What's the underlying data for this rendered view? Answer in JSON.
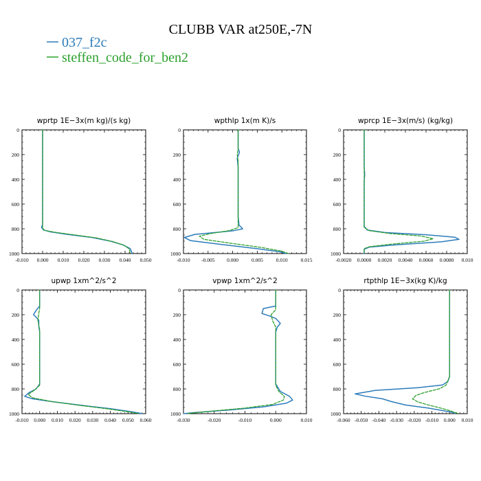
{
  "figure": {
    "title": "CLUBB VAR at250E,-7N",
    "colors": {
      "series_1": "#2b7bba",
      "series_2": "#2ca02c",
      "axis": "#000000"
    }
  },
  "legend": [
    {
      "label": "037_f2c",
      "color": "#2b7bba",
      "style": "solid"
    },
    {
      "label": "steffen_code_for_ben2",
      "color": "#2ca02c",
      "style": "dashed"
    }
  ],
  "chart_data": [
    {
      "type": "line",
      "title": "wprtp  1E−3x(m kg)/(s kg)",
      "xlim": [
        -0.01,
        0.05
      ],
      "ylim": [
        0,
        1000
      ],
      "y_inverted": true,
      "xticks": [
        "-0.010",
        "0.000",
        "0.010",
        "0.020",
        "0.030",
        "0.040",
        "0.050"
      ],
      "yticks": [
        "0",
        "200",
        "400",
        "600",
        "800",
        "1000"
      ],
      "series": [
        {
          "name": "037_f2c",
          "color": "#2b7bba",
          "dash": false,
          "points": [
            [
              0.0,
              0
            ],
            [
              0.0,
              200
            ],
            [
              0.0,
              400
            ],
            [
              0.0,
              600
            ],
            [
              0.0,
              760
            ],
            [
              -0.0005,
              790
            ],
            [
              0.0005,
              810
            ],
            [
              0.004,
              825
            ],
            [
              0.012,
              845
            ],
            [
              0.024,
              870
            ],
            [
              0.033,
              900
            ],
            [
              0.039,
              930
            ],
            [
              0.0425,
              960
            ],
            [
              0.0435,
              1000
            ]
          ]
        },
        {
          "name": "steffen_code_for_ben2",
          "color": "#2ca02c",
          "dash": true,
          "points": [
            [
              0.0,
              0
            ],
            [
              0.0,
              200
            ],
            [
              0.0,
              400
            ],
            [
              0.0,
              600
            ],
            [
              0.0,
              770
            ],
            [
              0.0,
              795
            ],
            [
              0.001,
              812
            ],
            [
              0.006,
              828
            ],
            [
              0.015,
              848
            ],
            [
              0.026,
              873
            ],
            [
              0.034,
              903
            ],
            [
              0.0395,
              933
            ],
            [
              0.042,
              962
            ],
            [
              0.0425,
              1000
            ]
          ]
        }
      ]
    },
    {
      "type": "line",
      "title": "wpthlp  1x(m K)/s",
      "xlim": [
        -0.012,
        0.015
      ],
      "ylim": [
        0,
        1000
      ],
      "y_inverted": true,
      "xticks": [
        "-0.010",
        "-0.005",
        "0.000",
        "0.005",
        "0.010",
        "0.015"
      ],
      "yticks": [
        "0",
        "200",
        "400",
        "600",
        "800",
        "1000"
      ],
      "series": [
        {
          "name": "037_f2c",
          "color": "#2b7bba",
          "dash": false,
          "points": [
            [
              0.0,
              0
            ],
            [
              0.0,
              150
            ],
            [
              0.0003,
              180
            ],
            [
              -0.0002,
              230
            ],
            [
              0.0,
              300
            ],
            [
              0.0,
              500
            ],
            [
              0.0,
              700
            ],
            [
              0.0002,
              770
            ],
            [
              0.001,
              800
            ],
            [
              -0.001,
              815
            ],
            [
              -0.005,
              830
            ],
            [
              -0.0095,
              845
            ],
            [
              -0.0118,
              870
            ],
            [
              -0.0105,
              895
            ],
            [
              -0.004,
              925
            ],
            [
              0.004,
              960
            ],
            [
              0.009,
              985
            ],
            [
              0.0105,
              1000
            ]
          ]
        },
        {
          "name": "steffen_code_for_ben2",
          "color": "#2ca02c",
          "dash": true,
          "points": [
            [
              0.0,
              0
            ],
            [
              0.0,
              150
            ],
            [
              -0.0002,
              200
            ],
            [
              0.0,
              250
            ],
            [
              0.0,
              500
            ],
            [
              0.0,
              700
            ],
            [
              0.0,
              790
            ],
            [
              -0.002,
              815
            ],
            [
              -0.006,
              838
            ],
            [
              -0.0085,
              860
            ],
            [
              -0.0075,
              885
            ],
            [
              -0.002,
              915
            ],
            [
              0.005,
              950
            ],
            [
              0.0095,
              980
            ],
            [
              0.011,
              1000
            ]
          ]
        }
      ]
    },
    {
      "type": "line",
      "title": "wprcp  1E−3x(m/s) (kg/kg)",
      "xlim": [
        -0.002,
        0.01
      ],
      "ylim": [
        0,
        1000
      ],
      "y_inverted": true,
      "xticks": [
        "-0.0020",
        "0.0000",
        "0.0020",
        "0.0040",
        "0.0060",
        "0.0080",
        "0.010"
      ],
      "yticks": [
        "0",
        "200",
        "400",
        "600",
        "800",
        "1000"
      ],
      "series": [
        {
          "name": "037_f2c",
          "color": "#2b7bba",
          "dash": false,
          "points": [
            [
              0.0,
              0
            ],
            [
              0.0,
              300
            ],
            [
              5e-05,
              360
            ],
            [
              0.0,
              420
            ],
            [
              0.0,
              600
            ],
            [
              0.0,
              780
            ],
            [
              0.0003,
              810
            ],
            [
              0.002,
              830
            ],
            [
              0.006,
              848
            ],
            [
              0.0088,
              868
            ],
            [
              0.0092,
              885
            ],
            [
              0.0075,
              905
            ],
            [
              0.003,
              930
            ],
            [
              0.0005,
              948
            ],
            [
              0.0,
              965
            ],
            [
              0.0,
              1000
            ]
          ]
        },
        {
          "name": "steffen_code_for_ben2",
          "color": "#2ca02c",
          "dash": true,
          "points": [
            [
              0.0,
              0
            ],
            [
              0.0,
              300
            ],
            [
              0.0,
              600
            ],
            [
              0.0,
              790
            ],
            [
              0.0005,
              815
            ],
            [
              0.0025,
              838
            ],
            [
              0.0055,
              858
            ],
            [
              0.0067,
              880
            ],
            [
              0.0058,
              900
            ],
            [
              0.0025,
              925
            ],
            [
              0.0005,
              945
            ],
            [
              0.0,
              960
            ],
            [
              0.0,
              1000
            ]
          ]
        }
      ]
    },
    {
      "type": "line",
      "title": "upwp  1xm^2/s^2",
      "xlim": [
        -0.01,
        0.06
      ],
      "ylim": [
        0,
        1000
      ],
      "y_inverted": true,
      "xticks": [
        "-0.010",
        "0.000",
        "0.010",
        "0.020",
        "0.030",
        "0.040",
        "0.050",
        "0.060"
      ],
      "yticks": [
        "0",
        "200",
        "400",
        "600",
        "800",
        "1000"
      ],
      "series": [
        {
          "name": "037_f2c",
          "color": "#2b7bba",
          "dash": false,
          "points": [
            [
              0.0,
              0
            ],
            [
              0.0,
              130
            ],
            [
              -0.002,
              165
            ],
            [
              -0.0035,
              200
            ],
            [
              -0.002,
              220
            ],
            [
              -0.0005,
              245
            ],
            [
              -0.0005,
              290
            ],
            [
              0.0,
              340
            ],
            [
              0.0,
              500
            ],
            [
              0.0,
              760
            ],
            [
              -0.002,
              800
            ],
            [
              -0.006,
              830
            ],
            [
              -0.0085,
              860
            ],
            [
              -0.004,
              880
            ],
            [
              0.008,
              905
            ],
            [
              0.025,
              935
            ],
            [
              0.04,
              960
            ],
            [
              0.052,
              985
            ],
            [
              0.058,
              1000
            ]
          ]
        },
        {
          "name": "steffen_code_for_ben2",
          "color": "#2ca02c",
          "dash": true,
          "points": [
            [
              0.0,
              0
            ],
            [
              0.0,
              150
            ],
            [
              -0.0005,
              190
            ],
            [
              -0.001,
              250
            ],
            [
              0.0,
              320
            ],
            [
              0.0,
              500
            ],
            [
              0.0,
              770
            ],
            [
              -0.003,
              810
            ],
            [
              -0.0065,
              845
            ],
            [
              -0.004,
              872
            ],
            [
              0.006,
              900
            ],
            [
              0.022,
              932
            ],
            [
              0.038,
              960
            ],
            [
              0.05,
              985
            ],
            [
              0.056,
              1000
            ]
          ]
        }
      ]
    },
    {
      "type": "line",
      "title": "vpwp  1xm^2/s^2",
      "xlim": [
        -0.03,
        0.01
      ],
      "ylim": [
        0,
        1000
      ],
      "y_inverted": true,
      "xticks": [
        "-0.030",
        "-0.020",
        "-0.010",
        "0.000",
        "0.010"
      ],
      "yticks": [
        "0",
        "200",
        "400",
        "600",
        "800",
        "1000"
      ],
      "series": [
        {
          "name": "037_f2c",
          "color": "#2b7bba",
          "dash": false,
          "points": [
            [
              0.0,
              0
            ],
            [
              0.0,
              130
            ],
            [
              -0.004,
              150
            ],
            [
              -0.0045,
              190
            ],
            [
              -0.002,
              210
            ],
            [
              0.0,
              230
            ],
            [
              0.0015,
              270
            ],
            [
              0.0005,
              300
            ],
            [
              0.0,
              340
            ],
            [
              0.0,
              500
            ],
            [
              0.0,
              760
            ],
            [
              0.0015,
              820
            ],
            [
              0.0045,
              860
            ],
            [
              0.0055,
              890
            ],
            [
              0.0035,
              915
            ],
            [
              -0.004,
              945
            ],
            [
              -0.015,
              970
            ],
            [
              -0.026,
              990
            ],
            [
              -0.03,
              1000
            ]
          ]
        },
        {
          "name": "steffen_code_for_ben2",
          "color": "#2ca02c",
          "dash": true,
          "points": [
            [
              0.0,
              0
            ],
            [
              0.0,
              160
            ],
            [
              -0.0015,
              200
            ],
            [
              -0.001,
              250
            ],
            [
              0.0,
              300
            ],
            [
              0.0,
              500
            ],
            [
              0.0,
              770
            ],
            [
              0.001,
              820
            ],
            [
              0.0028,
              860
            ],
            [
              0.0025,
              890
            ],
            [
              -0.001,
              925
            ],
            [
              -0.01,
              955
            ],
            [
              -0.022,
              982
            ],
            [
              -0.029,
              1000
            ]
          ]
        }
      ]
    },
    {
      "type": "line",
      "title": "rtpthlp  1E−3x(kg K)/kg",
      "xlim": [
        -0.06,
        0.01
      ],
      "ylim": [
        0,
        1000
      ],
      "y_inverted": true,
      "xticks": [
        "-0.060",
        "-0.050",
        "-0.040",
        "-0.030",
        "-0.020",
        "-0.010",
        "0.000",
        "0.010"
      ],
      "yticks": [
        "0",
        "200",
        "400",
        "600",
        "800",
        "1000"
      ],
      "series": [
        {
          "name": "037_f2c",
          "color": "#2b7bba",
          "dash": false,
          "points": [
            [
              0.0,
              0
            ],
            [
              0.0,
              500
            ],
            [
              0.0,
              700
            ],
            [
              -0.001,
              740
            ],
            [
              -0.004,
              768
            ],
            [
              -0.018,
              790
            ],
            [
              -0.042,
              812
            ],
            [
              -0.0535,
              840
            ],
            [
              -0.048,
              858
            ],
            [
              -0.038,
              880
            ],
            [
              -0.033,
              902
            ],
            [
              -0.025,
              930
            ],
            [
              -0.012,
              955
            ],
            [
              -0.004,
              975
            ],
            [
              0.002,
              990
            ],
            [
              0.003,
              1000
            ]
          ]
        },
        {
          "name": "steffen_code_for_ben2",
          "color": "#2ca02c",
          "dash": true,
          "points": [
            [
              0.0,
              0
            ],
            [
              0.0,
              500
            ],
            [
              0.0,
              700
            ],
            [
              -0.002,
              770
            ],
            [
              -0.006,
              800
            ],
            [
              -0.014,
              828
            ],
            [
              -0.019,
              852
            ],
            [
              -0.021,
              880
            ],
            [
              -0.018,
              905
            ],
            [
              -0.012,
              930
            ],
            [
              -0.005,
              955
            ],
            [
              0.0,
              975
            ],
            [
              0.003,
              990
            ],
            [
              0.005,
              1000
            ]
          ]
        }
      ]
    }
  ]
}
